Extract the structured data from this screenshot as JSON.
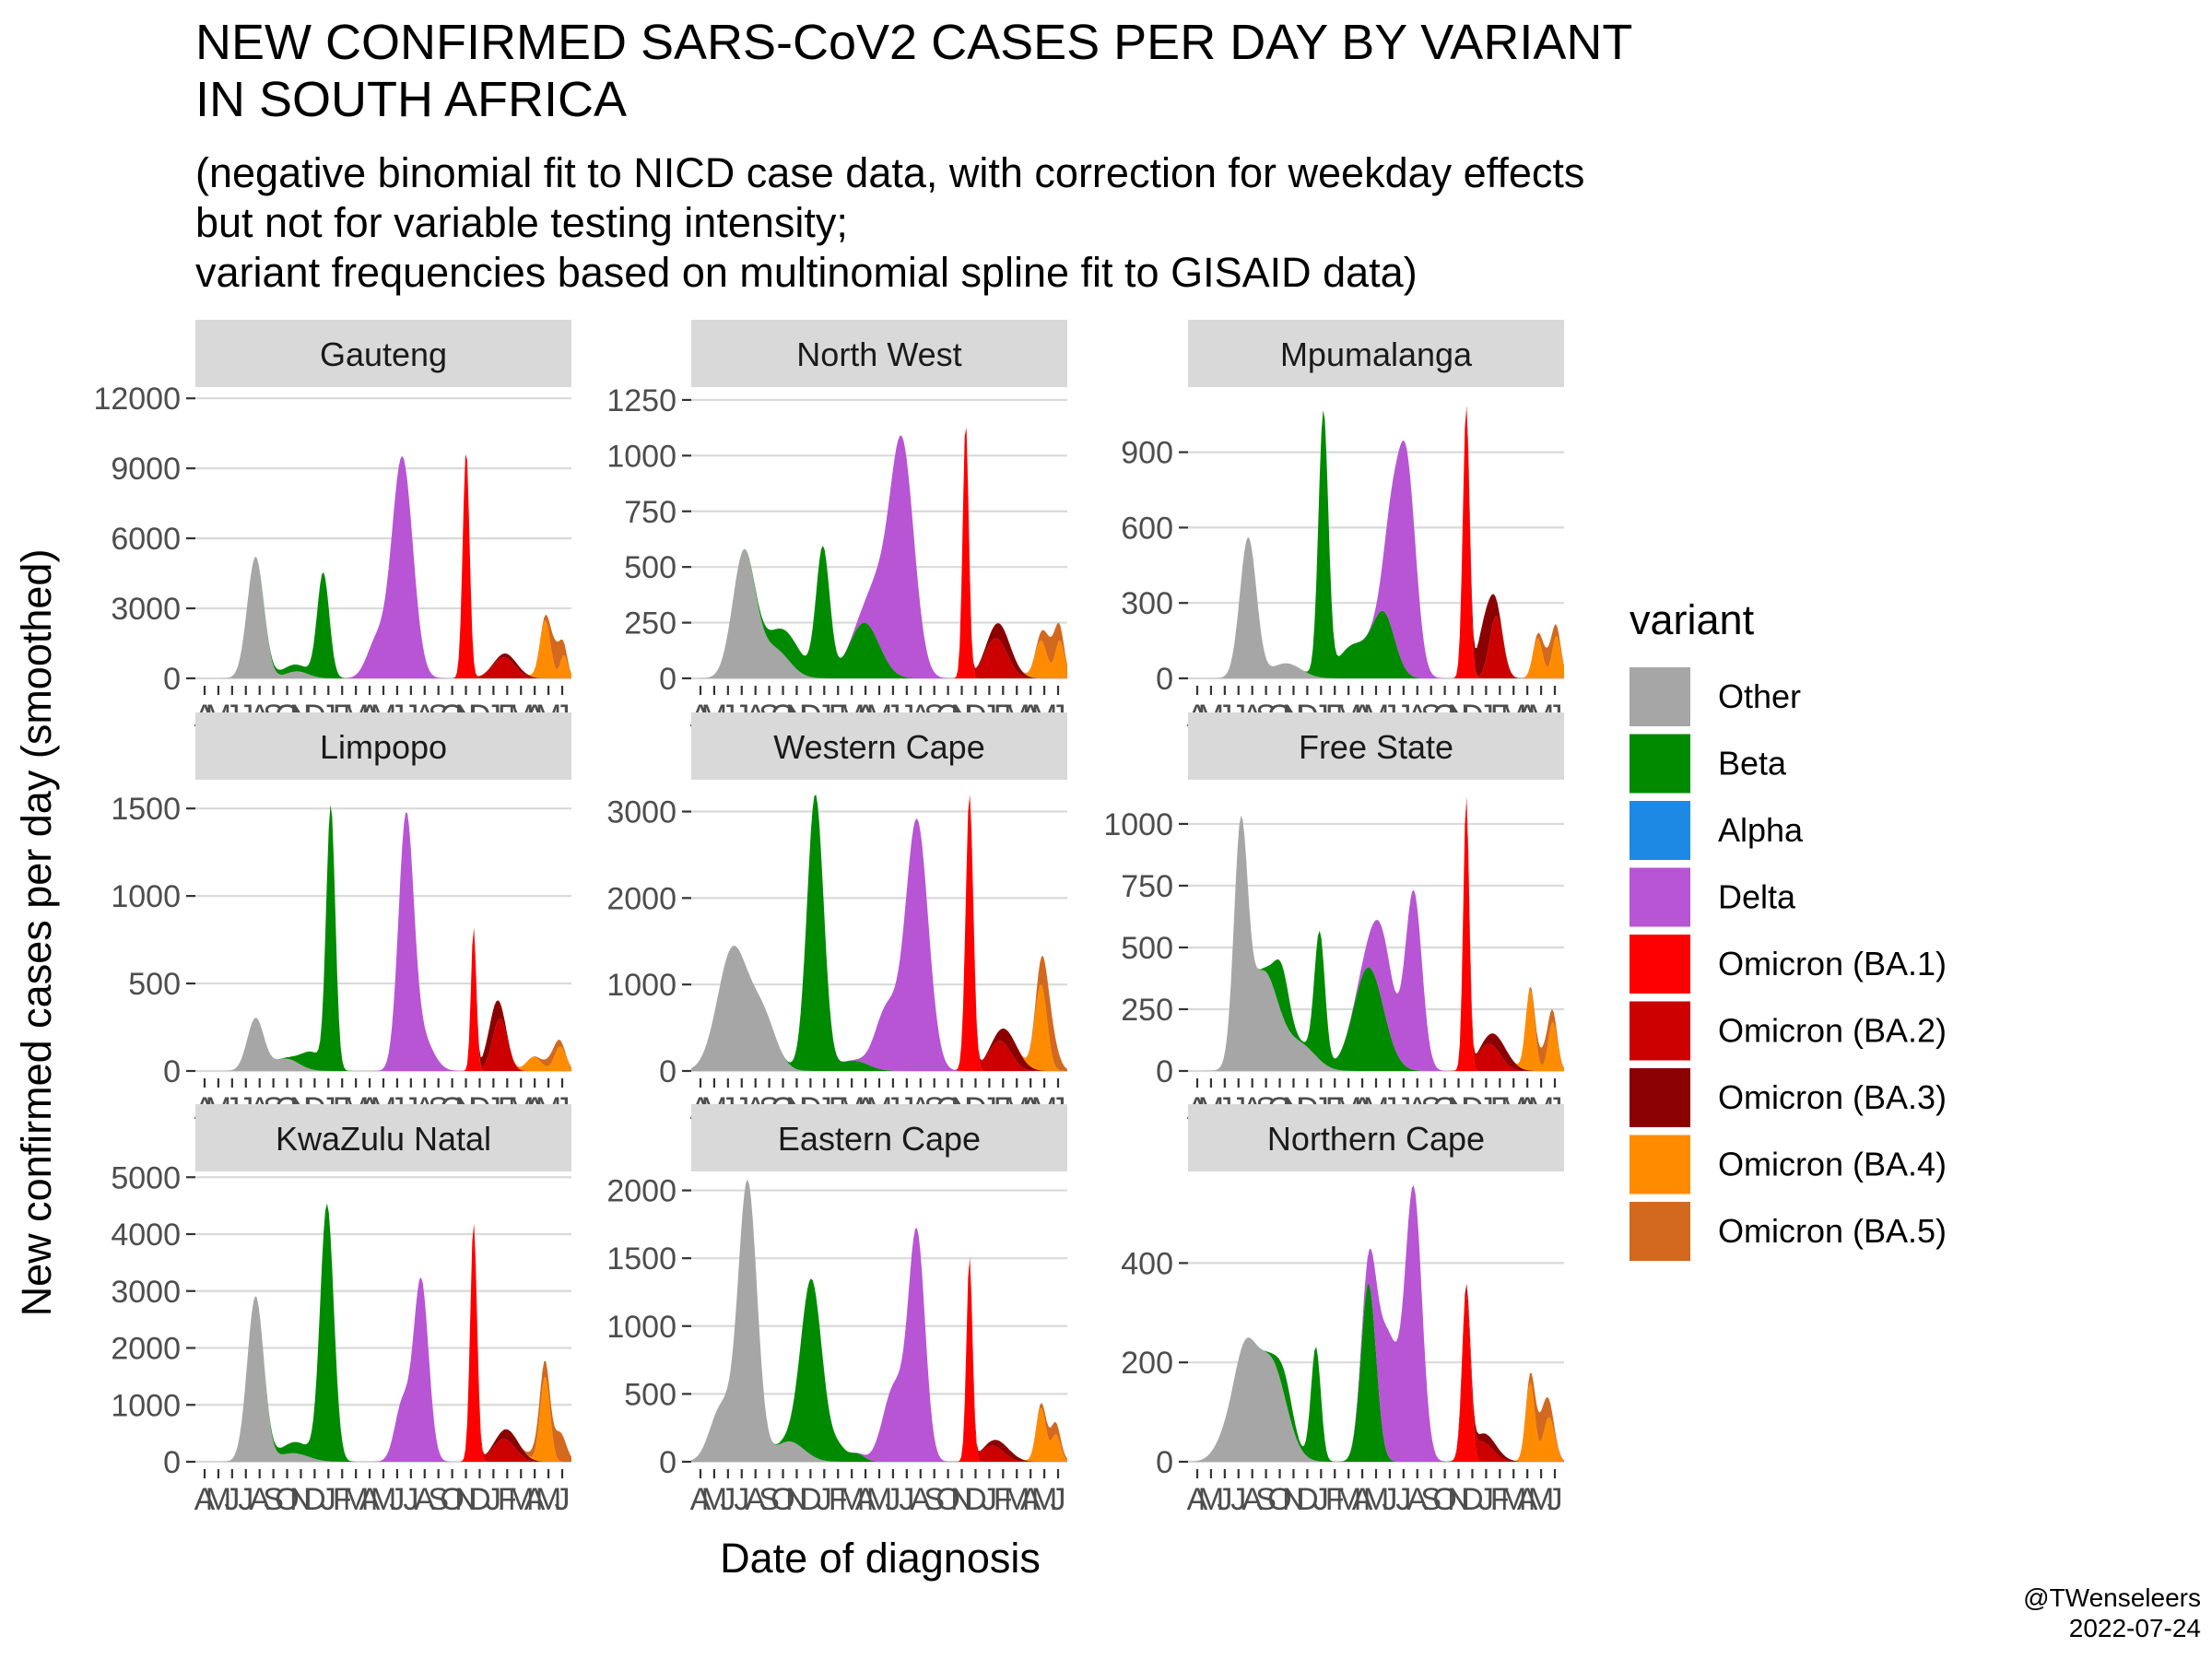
{
  "chart_data": {
    "type": "area",
    "title_lines": [
      "NEW CONFIRMED SARS-CoV2 CASES PER DAY BY VARIANT",
      "IN SOUTH AFRICA"
    ],
    "subtitle_lines": [
      "(negative binomial fit to NICD case data, with correction for weekday effects",
      "but not for variable testing intensity;",
      "variant frequencies based on multinomial spline fit to GISAID data)"
    ],
    "xlabel": "Date of diagnosis",
    "ylabel": "New confirmed cases per day (smoothed)",
    "legend_title": "variant",
    "legend_position": "right",
    "caption_lines": [
      "@TWenseleers",
      "2022-07-24"
    ],
    "stacked": true,
    "grid": true,
    "x_range": [
      "2020-04",
      "2022-07"
    ],
    "variants": [
      {
        "name": "Other",
        "color": "#a6a6a6"
      },
      {
        "name": "Beta",
        "color": "#008a00"
      },
      {
        "name": "Alpha",
        "color": "#1e88e5"
      },
      {
        "name": "Delta",
        "color": "#b755d4"
      },
      {
        "name": "Omicron (BA.1)",
        "color": "#ff0000"
      },
      {
        "name": "Omicron (BA.2)",
        "color": "#cc0000"
      },
      {
        "name": "Omicron (BA.3)",
        "color": "#8b0000"
      },
      {
        "name": "Omicron (BA.4)",
        "color": "#ff8c00"
      },
      {
        "name": "Omicron (BA.5)",
        "color": "#d2691e"
      }
    ],
    "panels": [
      {
        "name": "Gauteng",
        "ylim": [
          0,
          12600
        ],
        "yticks": [
          0,
          3000,
          6000,
          9000,
          12000
        ],
        "x_tick_labels": [
          "A",
          "M",
          "J",
          "J",
          "A",
          "S",
          "O",
          "N",
          "D",
          "J",
          "F",
          "M",
          "A",
          "M",
          "J",
          "J",
          "A",
          "S",
          "O",
          "N",
          "D",
          "J",
          "F",
          "M",
          "A",
          "M",
          "J"
        ],
        "peaks": {
          "other": [
            [
              0.16,
              5200,
              0.022
            ],
            [
              0.27,
              300,
              0.03
            ]
          ],
          "beta": [
            [
              0.34,
              4500,
              0.016
            ],
            [
              0.26,
              300,
              0.04
            ]
          ],
          "delta": [
            [
              0.55,
              9500,
              0.028
            ],
            [
              0.48,
              1500,
              0.025
            ]
          ],
          "ba1": [
            [
              0.72,
              9800,
              0.009
            ]
          ],
          "ba2": [
            [
              0.82,
              900,
              0.03
            ]
          ],
          "ba3": [
            [
              0.84,
              200,
              0.03
            ]
          ],
          "ba4": [
            [
              0.93,
              2500,
              0.014
            ],
            [
              0.98,
              1000,
              0.01
            ]
          ],
          "ba5": [
            [
              0.96,
              1200,
              0.016
            ]
          ]
        }
      },
      {
        "name": "North West",
        "ylim": [
          0,
          1320
        ],
        "yticks": [
          0,
          250,
          500,
          750,
          1000,
          1250
        ],
        "x_tick_labels": [
          "A",
          "M",
          "J",
          "J",
          "A",
          "S",
          "O",
          "N",
          "D",
          "J",
          "F",
          "M",
          "A",
          "M",
          "J",
          "J",
          "A",
          "S",
          "O",
          "N",
          "D",
          "J",
          "F",
          "M",
          "A",
          "M",
          "J"
        ],
        "peaks": {
          "other": [
            [
              0.14,
              560,
              0.03
            ],
            [
              0.22,
              130,
              0.04
            ]
          ],
          "beta": [
            [
              0.35,
              580,
              0.018
            ],
            [
              0.26,
              120,
              0.04
            ],
            [
              0.46,
              250,
              0.04
            ]
          ],
          "delta": [
            [
              0.56,
              1050,
              0.032
            ],
            [
              0.5,
              200,
              0.03
            ]
          ],
          "ba1": [
            [
              0.73,
              1150,
              0.008
            ]
          ],
          "ba2": [
            [
              0.81,
              180,
              0.03
            ]
          ],
          "ba3": [
            [
              0.83,
              80,
              0.03
            ]
          ],
          "ba4": [
            [
              0.93,
              170,
              0.016
            ],
            [
              0.98,
              170,
              0.012
            ]
          ],
          "ba5": [
            [
              0.96,
              120,
              0.02
            ]
          ]
        }
      },
      {
        "name": "Mpumalanga",
        "ylim": [
          0,
          1170
        ],
        "yticks": [
          0,
          300,
          600,
          900
        ],
        "x_tick_labels": [
          "A",
          "M",
          "J",
          "J",
          "A",
          "S",
          "O",
          "N",
          "D",
          "J",
          "F",
          "M",
          "A",
          "M",
          "J",
          "J",
          "A",
          "S",
          "O",
          "N",
          "D",
          "J",
          "F",
          "M",
          "A",
          "M",
          "J"
        ],
        "peaks": {
          "other": [
            [
              0.16,
              560,
              0.022
            ],
            [
              0.26,
              60,
              0.04
            ]
          ],
          "beta": [
            [
              0.36,
              1050,
              0.013
            ],
            [
              0.44,
              130,
              0.04
            ],
            [
              0.52,
              250,
              0.03
            ]
          ],
          "delta": [
            [
              0.58,
              850,
              0.025
            ],
            [
              0.54,
              300,
              0.02
            ]
          ],
          "ba1": [
            [
              0.74,
              1080,
              0.009
            ]
          ],
          "ba2": [
            [
              0.82,
              250,
              0.018
            ]
          ],
          "ba3": [
            [
              0.79,
              200,
              0.02
            ]
          ],
          "ba4": [
            [
              0.93,
              160,
              0.013
            ],
            [
              0.98,
              170,
              0.012
            ]
          ],
          "ba5": [
            [
              0.96,
              80,
              0.018
            ]
          ]
        }
      },
      {
        "name": "Limpopo",
        "ylim": [
          0,
          1680
        ],
        "yticks": [
          0,
          500,
          1000,
          1500
        ],
        "x_tick_labels": [
          "A",
          "M",
          "J",
          "J",
          "A",
          "S",
          "O",
          "N",
          "D",
          "J",
          "F",
          "M",
          "A",
          "M",
          "J",
          "J",
          "A",
          "S",
          "O",
          "N",
          "D",
          "J",
          "F",
          "M",
          "A",
          "M",
          "J"
        ],
        "peaks": {
          "other": [
            [
              0.16,
              300,
              0.022
            ],
            [
              0.24,
              70,
              0.035
            ]
          ],
          "beta": [
            [
              0.36,
              1500,
              0.012
            ],
            [
              0.31,
              100,
              0.03
            ]
          ],
          "delta": [
            [
              0.56,
              1400,
              0.02
            ],
            [
              0.6,
              200,
              0.03
            ]
          ],
          "ba1": [
            [
              0.74,
              820,
              0.007
            ]
          ],
          "ba2": [
            [
              0.81,
              300,
              0.02
            ]
          ],
          "ba3": [
            [
              0.79,
              150,
              0.02
            ]
          ],
          "ba4": [
            [
              0.9,
              80,
              0.02
            ],
            [
              0.97,
              140,
              0.015
            ]
          ],
          "ba5": [
            [
              0.95,
              60,
              0.02
            ]
          ]
        }
      },
      {
        "name": "Western Cape",
        "ylim": [
          0,
          3400
        ],
        "yticks": [
          0,
          1000,
          2000,
          3000
        ],
        "x_tick_labels": [
          "A",
          "M",
          "J",
          "J",
          "A",
          "S",
          "O",
          "N",
          "D",
          "J",
          "F",
          "M",
          "A",
          "M",
          "J",
          "J",
          "A",
          "S",
          "O",
          "N",
          "D",
          "J",
          "F",
          "M",
          "A",
          "M",
          "J"
        ],
        "peaks": {
          "other": [
            [
              0.11,
              1400,
              0.04
            ],
            [
              0.19,
              600,
              0.035
            ]
          ],
          "beta": [
            [
              0.33,
              3200,
              0.022
            ],
            [
              0.43,
              120,
              0.04
            ]
          ],
          "delta": [
            [
              0.6,
              2900,
              0.03
            ],
            [
              0.52,
              700,
              0.03
            ]
          ],
          "ba1": [
            [
              0.74,
              3200,
              0.01
            ]
          ],
          "ba2": [
            [
              0.82,
              350,
              0.03
            ]
          ],
          "ba3": [
            [
              0.85,
              200,
              0.03
            ]
          ],
          "ba4": [
            [
              0.93,
              1000,
              0.016
            ]
          ],
          "ba5": [
            [
              0.95,
              500,
              0.02
            ]
          ]
        }
      },
      {
        "name": "Free State",
        "ylim": [
          0,
          1190
        ],
        "yticks": [
          0,
          250,
          500,
          750,
          1000
        ],
        "x_tick_labels": [
          "A",
          "M",
          "J",
          "J",
          "A",
          "S",
          "O",
          "N",
          "D",
          "J",
          "F",
          "M",
          "A",
          "M",
          "J",
          "J",
          "A",
          "S",
          "O",
          "N",
          "D",
          "J",
          "F",
          "M",
          "A",
          "M",
          "J"
        ],
        "peaks": {
          "other": [
            [
              0.14,
              900,
              0.018
            ],
            [
              0.2,
              400,
              0.04
            ],
            [
              0.3,
              100,
              0.04
            ]
          ],
          "beta": [
            [
              0.25,
              200,
              0.02
            ],
            [
              0.35,
              520,
              0.014
            ],
            [
              0.48,
              420,
              0.04
            ]
          ],
          "delta": [
            [
              0.6,
              720,
              0.022
            ],
            [
              0.52,
              300,
              0.03
            ]
          ],
          "ba1": [
            [
              0.74,
              1100,
              0.008
            ]
          ],
          "ba2": [
            [
              0.8,
              110,
              0.03
            ]
          ],
          "ba3": [
            [
              0.83,
              60,
              0.03
            ]
          ],
          "ba4": [
            [
              0.91,
              330,
              0.012
            ],
            [
              0.97,
              200,
              0.012
            ]
          ],
          "ba5": [
            [
              0.95,
              80,
              0.02
            ]
          ]
        }
      },
      {
        "name": "KwaZulu Natal",
        "ylim": [
          0,
          5150
        ],
        "yticks": [
          0,
          1000,
          2000,
          3000,
          4000,
          5000
        ],
        "x_tick_labels": [
          "A",
          "M",
          "J",
          "J",
          "A",
          "S",
          "O",
          "N",
          "D",
          "J",
          "F",
          "M",
          "A",
          "M",
          "J",
          "J",
          "A",
          "S",
          "O",
          "N",
          "D",
          "J",
          "F",
          "M",
          "A",
          "M",
          "J"
        ],
        "peaks": {
          "other": [
            [
              0.16,
              2900,
              0.022
            ],
            [
              0.26,
              150,
              0.04
            ]
          ],
          "beta": [
            [
              0.35,
              4500,
              0.018
            ],
            [
              0.27,
              200,
              0.04
            ]
          ],
          "delta": [
            [
              0.6,
              3200,
              0.02
            ],
            [
              0.55,
              1000,
              0.02
            ]
          ],
          "ba1": [
            [
              0.74,
              4200,
              0.009
            ]
          ],
          "ba2": [
            [
              0.82,
              400,
              0.03
            ]
          ],
          "ba3": [
            [
              0.84,
              200,
              0.03
            ]
          ],
          "ba4": [
            [
              0.93,
              1500,
              0.013
            ]
          ],
          "ba5": [
            [
              0.97,
              500,
              0.016
            ],
            [
              0.92,
              300,
              0.02
            ]
          ]
        }
      },
      {
        "name": "Eastern Cape",
        "ylim": [
          0,
          2160
        ],
        "yticks": [
          0,
          500,
          1000,
          1500,
          2000
        ],
        "x_tick_labels": [
          "A",
          "M",
          "J",
          "J",
          "A",
          "S",
          "O",
          "N",
          "D",
          "J",
          "F",
          "M",
          "A",
          "M",
          "J",
          "J",
          "A",
          "S",
          "O",
          "N",
          "D",
          "J",
          "F",
          "M",
          "A",
          "M",
          "J"
        ],
        "peaks": {
          "other": [
            [
              0.15,
              2050,
              0.025
            ],
            [
              0.08,
              400,
              0.03
            ],
            [
              0.26,
              150,
              0.04
            ]
          ],
          "beta": [
            [
              0.32,
              1300,
              0.028
            ],
            [
              0.39,
              100,
              0.02
            ],
            [
              0.44,
              60,
              0.02
            ]
          ],
          "delta": [
            [
              0.6,
              1650,
              0.022
            ],
            [
              0.54,
              550,
              0.03
            ]
          ],
          "ba1": [
            [
              0.74,
              1500,
              0.008
            ]
          ],
          "ba2": [
            [
              0.8,
              120,
              0.03
            ]
          ],
          "ba3": [
            [
              0.83,
              60,
              0.03
            ]
          ],
          "ba4": [
            [
              0.93,
              400,
              0.013
            ],
            [
              0.97,
              200,
              0.012
            ]
          ],
          "ba5": [
            [
              0.96,
              100,
              0.02
            ]
          ]
        }
      },
      {
        "name": "Northern Cape",
        "ylim": [
          0,
          590
        ],
        "yticks": [
          0,
          200,
          400
        ],
        "x_tick_labels": [
          "A",
          "M",
          "J",
          "J",
          "A",
          "S",
          "O",
          "N",
          "D",
          "J",
          "F",
          "M",
          "A",
          "M",
          "J",
          "J",
          "A",
          "S",
          "O",
          "N",
          "D",
          "J",
          "F",
          "M",
          "A",
          "M",
          "J"
        ],
        "peaks": {
          "other": [
            [
              0.15,
              190,
              0.03
            ],
            [
              0.22,
              200,
              0.04
            ],
            [
              0.1,
              40,
              0.03
            ]
          ],
          "beta": [
            [
              0.26,
              50,
              0.02
            ],
            [
              0.34,
              230,
              0.013
            ],
            [
              0.48,
              360,
              0.02
            ]
          ],
          "delta": [
            [
              0.6,
              540,
              0.022
            ],
            [
              0.53,
              250,
              0.03
            ]
          ],
          "ba1": [
            [
              0.74,
              340,
              0.011
            ]
          ],
          "ba2": [
            [
              0.78,
              40,
              0.03
            ]
          ],
          "ba3": [
            [
              0.8,
              20,
              0.03
            ]
          ],
          "ba4": [
            [
              0.91,
              160,
              0.012
            ],
            [
              0.96,
              90,
              0.015
            ]
          ],
          "ba5": [
            [
              0.94,
              60,
              0.02
            ]
          ]
        }
      }
    ]
  }
}
